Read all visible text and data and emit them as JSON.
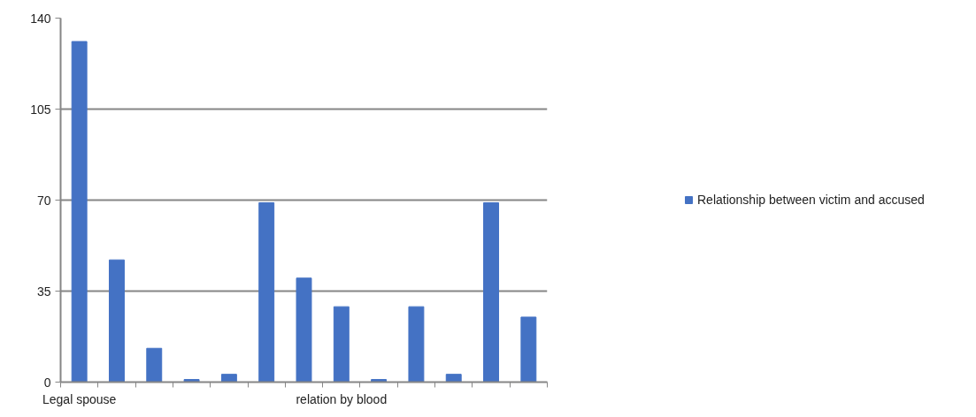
{
  "chart_data": {
    "type": "bar",
    "categories": [
      "Legal spouse",
      null,
      null,
      null,
      null,
      null,
      null,
      "relation by blood",
      null,
      null,
      null,
      null,
      null
    ],
    "series": [
      {
        "name": "Relationship between victim and accused",
        "color": "#4472c4",
        "values": [
          131,
          47,
          13,
          1,
          3,
          69,
          40,
          29,
          1,
          29,
          3,
          69,
          25
        ]
      }
    ],
    "ylim": [
      0,
      140
    ],
    "yticks": [
      0,
      35,
      70,
      105,
      140
    ],
    "grid": "y",
    "legend": "right"
  }
}
